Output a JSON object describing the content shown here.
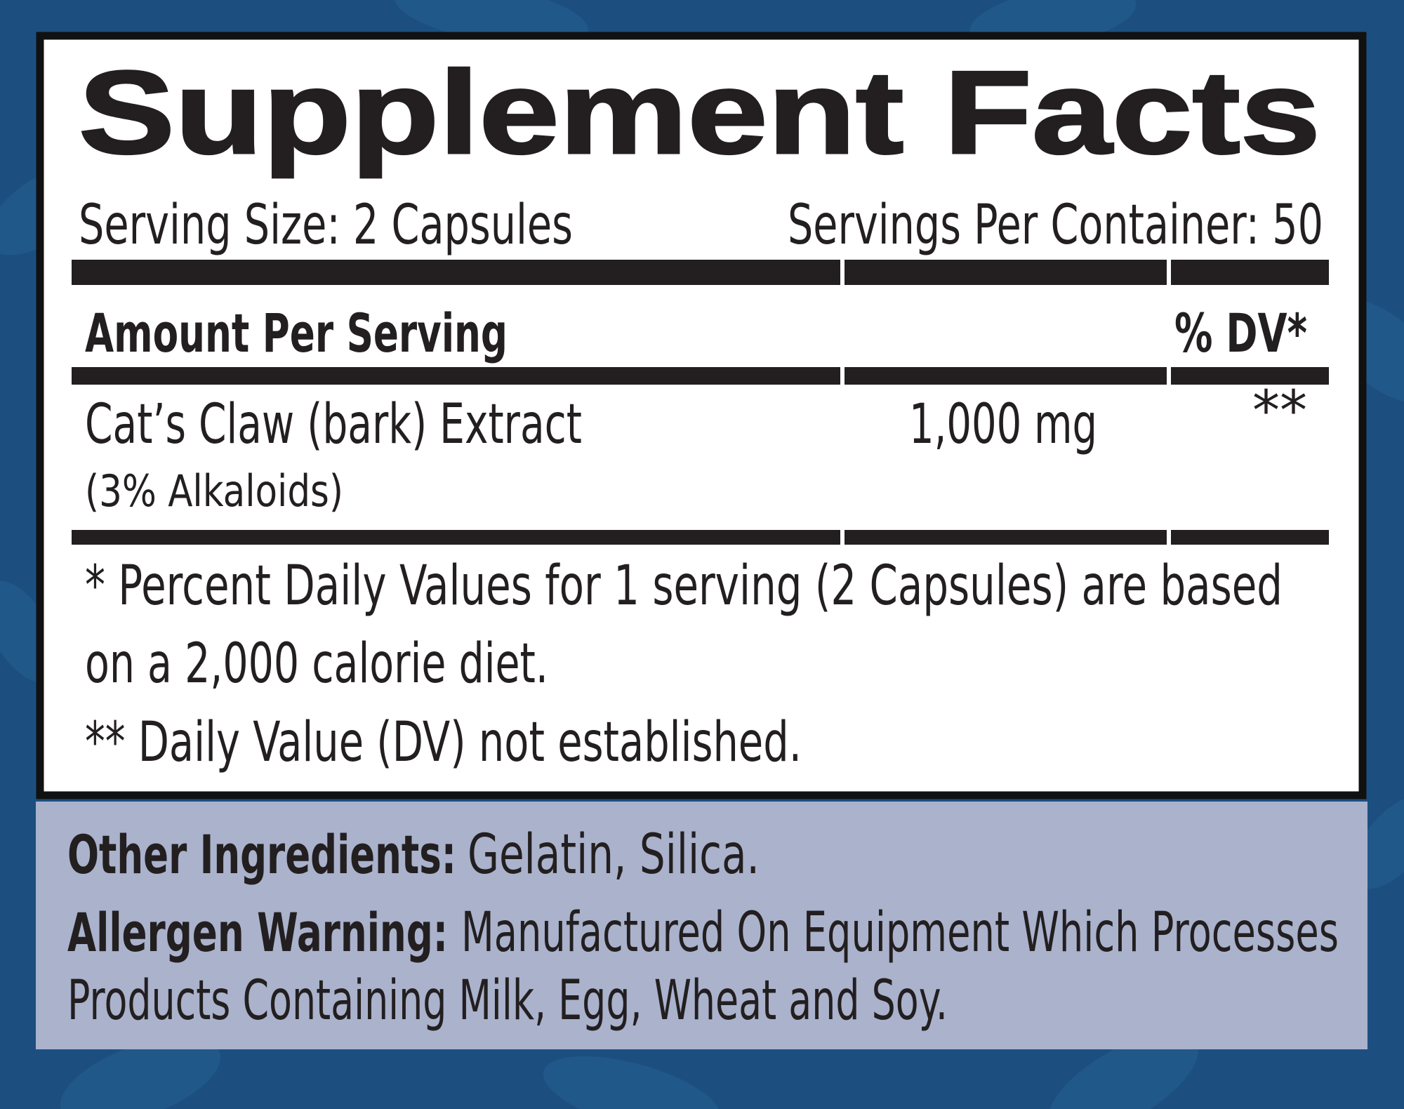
{
  "title": "Supplement Facts",
  "serving_size": "Serving Size: 2 Capsules",
  "servings_per_container": "Servings Per Container: 50",
  "header": {
    "amount": "Amount Per Serving",
    "dv": "% DV*"
  },
  "rows": [
    {
      "name": "Cat’s Claw (bark) Extract",
      "detail": "(3% Alkaloids)",
      "amount": "1,000 mg",
      "dv": "**"
    }
  ],
  "footnotes": [
    "* Percent Daily Values for 1 serving (2 Capsules) are based",
    "on a 2,000 calorie diet.",
    "** Daily Value (DV) not established."
  ],
  "other_ingredients": {
    "label": "Other Ingredients:",
    "text": "Gelatin, Silica."
  },
  "allergen_warning": {
    "label": "Allergen Warning:",
    "lines": [
      "Manufactured On Equipment Which Processes",
      "Products Containing Milk, Egg, Wheat and Soy."
    ]
  }
}
